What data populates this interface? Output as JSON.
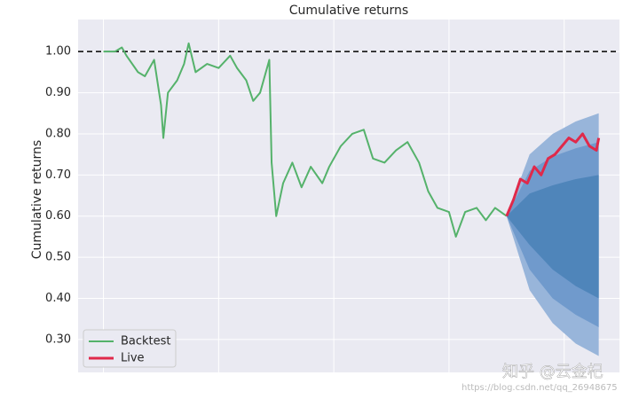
{
  "chart_data": {
    "type": "line",
    "title": "Cumulative returns",
    "ylabel": "Cumulative returns",
    "xlim": [
      -11,
      224
    ],
    "xticks": [
      0,
      50,
      100,
      150,
      200
    ],
    "ylim": [
      0.22,
      1.078
    ],
    "yticks": [
      {
        "value": 0.3,
        "label": "0.30"
      },
      {
        "value": 0.4,
        "label": "0.40"
      },
      {
        "value": 0.5,
        "label": "0.50"
      },
      {
        "value": 0.6,
        "label": "0.60"
      },
      {
        "value": 0.7,
        "label": "0.70"
      },
      {
        "value": 0.8,
        "label": "0.80"
      },
      {
        "value": 0.9,
        "label": "0.90"
      },
      {
        "value": 1.0,
        "label": "1.00"
      }
    ],
    "grid": true,
    "legend": "lower left",
    "reference_line": 1.0,
    "bands": [
      {
        "color": "#98b5da",
        "x": [
          175,
          185,
          195,
          205,
          215
        ],
        "upper": [
          0.6,
          0.75,
          0.8,
          0.83,
          0.85
        ],
        "lower": [
          0.6,
          0.42,
          0.34,
          0.29,
          0.26
        ]
      },
      {
        "color": "#709acc",
        "x": [
          175,
          185,
          195,
          205,
          215
        ],
        "upper": [
          0.6,
          0.71,
          0.745,
          0.765,
          0.78
        ],
        "lower": [
          0.6,
          0.47,
          0.4,
          0.36,
          0.33
        ]
      },
      {
        "color": "#4f85ba",
        "x": [
          175,
          185,
          195,
          205,
          215
        ],
        "upper": [
          0.6,
          0.655,
          0.675,
          0.69,
          0.7
        ],
        "lower": [
          0.6,
          0.53,
          0.47,
          0.43,
          0.4
        ]
      }
    ],
    "series": [
      {
        "name": "Backtest",
        "color": "#55b26b",
        "x": [
          0,
          5,
          8,
          10,
          15,
          18,
          20,
          22,
          25,
          26,
          28,
          32,
          35,
          37,
          40,
          45,
          50,
          55,
          58,
          62,
          65,
          68,
          72,
          73,
          75,
          78,
          82,
          86,
          90,
          95,
          98,
          103,
          108,
          113,
          117,
          122,
          127,
          132,
          137,
          141,
          145,
          150,
          153,
          157,
          162,
          166,
          170,
          175
        ],
        "values": [
          1.0,
          1.0,
          1.01,
          0.99,
          0.95,
          0.94,
          0.96,
          0.98,
          0.87,
          0.79,
          0.9,
          0.93,
          0.97,
          1.02,
          0.95,
          0.97,
          0.96,
          0.99,
          0.96,
          0.93,
          0.88,
          0.9,
          0.98,
          0.73,
          0.6,
          0.68,
          0.73,
          0.67,
          0.72,
          0.68,
          0.72,
          0.77,
          0.8,
          0.81,
          0.74,
          0.73,
          0.76,
          0.78,
          0.73,
          0.66,
          0.62,
          0.61,
          0.55,
          0.61,
          0.62,
          0.59,
          0.62,
          0.6
        ]
      },
      {
        "name": "Live",
        "color": "#e0294a",
        "x": [
          175,
          178,
          181,
          184,
          187,
          190,
          193,
          196,
          199,
          202,
          205,
          208,
          211,
          214,
          215
        ],
        "values": [
          0.6,
          0.64,
          0.69,
          0.68,
          0.72,
          0.7,
          0.74,
          0.75,
          0.77,
          0.79,
          0.78,
          0.8,
          0.77,
          0.76,
          0.79
        ]
      }
    ],
    "watermark": {
      "brand": "知乎 @云金杞",
      "url": "https://blog.csdn.net/qq_26948675"
    }
  }
}
